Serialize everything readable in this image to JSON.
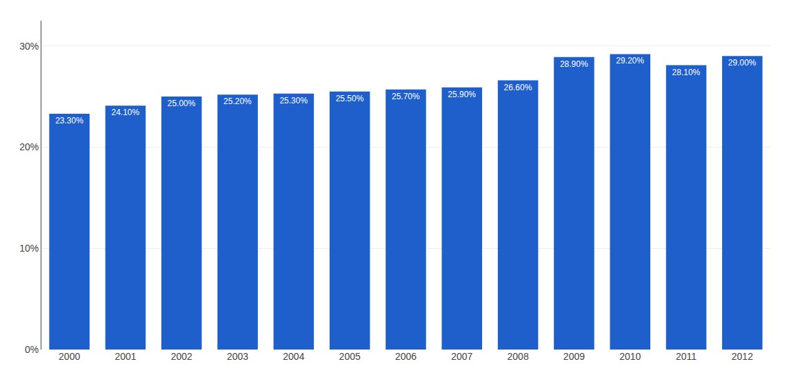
{
  "chart_data": {
    "type": "bar",
    "categories": [
      "2000",
      "2001",
      "2002",
      "2003",
      "2004",
      "2005",
      "2006",
      "2007",
      "2008",
      "2009",
      "2010",
      "2011",
      "2012"
    ],
    "values": [
      23.3,
      24.1,
      25.0,
      25.2,
      25.3,
      25.5,
      25.7,
      25.9,
      26.6,
      28.9,
      29.2,
      28.1,
      29.0
    ],
    "value_labels": [
      "23.30%",
      "24.10%",
      "25.00%",
      "25.20%",
      "25.30%",
      "25.50%",
      "25.70%",
      "25.90%",
      "26.60%",
      "28.90%",
      "29.20%",
      "28.10%",
      "29.00%"
    ],
    "data_labels": true,
    "color": "#1e5fcc",
    "ylim": [
      0,
      32.5
    ],
    "yticks": [
      {
        "value": 0,
        "label": "0%"
      },
      {
        "value": 10,
        "label": "10%"
      },
      {
        "value": 20,
        "label": "20%"
      },
      {
        "value": 30,
        "label": "30%"
      }
    ],
    "grid": true
  }
}
